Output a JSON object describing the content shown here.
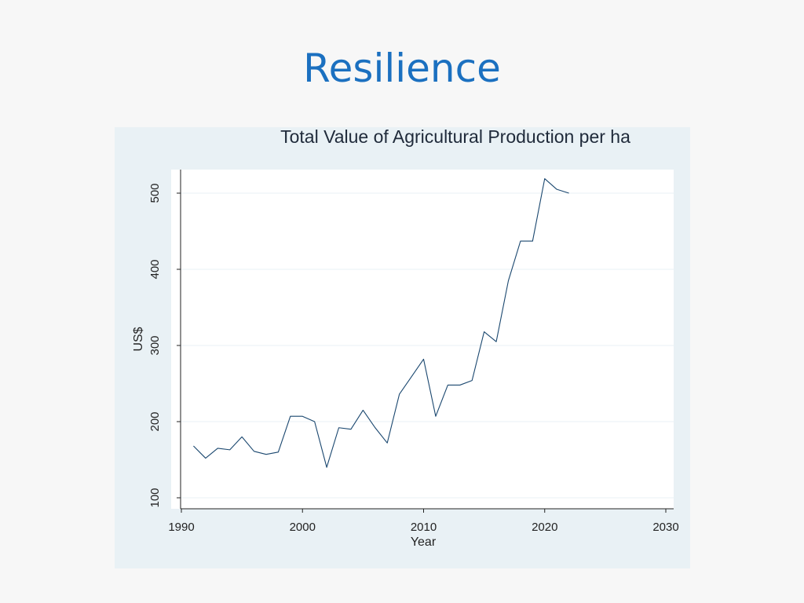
{
  "slide": {
    "title": "Resilience"
  },
  "colors": {
    "title": "#1b70c0",
    "panel_background": "#e9f1f5",
    "plot_background": "#ffffff",
    "line": "#1a476f",
    "grid": "#eaf1f4"
  },
  "chart_data": {
    "type": "line",
    "title": "Total Value of Agricultural Production per ha",
    "xlabel": "Year",
    "ylabel": "US$",
    "xlim": [
      1990,
      2030
    ],
    "ylim": [
      100,
      530
    ],
    "xticks": [
      1990,
      2000,
      2010,
      2020,
      2030
    ],
    "yticks": [
      100,
      200,
      300,
      400,
      500
    ],
    "grid": true,
    "legend": "none",
    "x": [
      1991,
      1992,
      1993,
      1994,
      1995,
      1996,
      1997,
      1998,
      1999,
      2000,
      2001,
      2002,
      2003,
      2004,
      2005,
      2006,
      2007,
      2008,
      2009,
      2010,
      2011,
      2012,
      2013,
      2014,
      2015,
      2016,
      2017,
      2018,
      2019,
      2020,
      2021,
      2022
    ],
    "values": [
      168,
      152,
      165,
      163,
      180,
      161,
      157,
      160,
      207,
      207,
      200,
      140,
      192,
      190,
      215,
      192,
      172,
      236,
      259,
      282,
      207,
      248,
      248,
      254,
      318,
      305,
      385,
      437,
      437,
      519,
      505,
      500
    ]
  }
}
